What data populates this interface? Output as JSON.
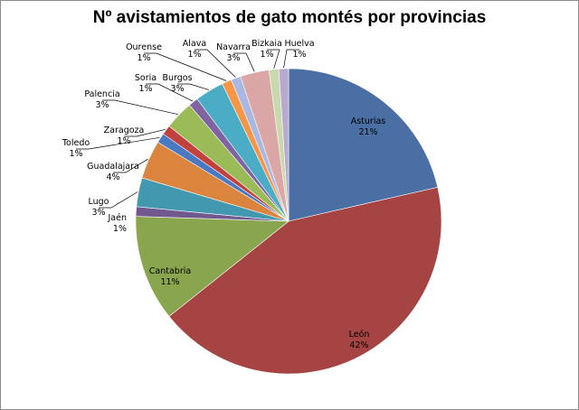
{
  "chart_data": {
    "type": "pie",
    "title": "Nº avistamientos de gato montés por provincias",
    "slices": [
      {
        "name": "Asturias",
        "value": 21,
        "label": "21%",
        "color": "#4a6fa5"
      },
      {
        "name": "León",
        "value": 42,
        "label": "42%",
        "color": "#a54442"
      },
      {
        "name": "Cantabria",
        "value": 11,
        "label": "11%",
        "color": "#89a54e"
      },
      {
        "name": "Jaén",
        "value": 1,
        "label": "1%",
        "color": "#71588f"
      },
      {
        "name": "Lugo",
        "value": 3,
        "label": "3%",
        "color": "#4198af"
      },
      {
        "name": "Guadalajara",
        "value": 4,
        "label": "4%",
        "color": "#db843d"
      },
      {
        "name": "Toledo",
        "value": 1,
        "label": "1%",
        "color": "#4a78c2"
      },
      {
        "name": "Zaragoza",
        "value": 1,
        "label": "1%",
        "color": "#c2413e"
      },
      {
        "name": "Palencia",
        "value": 3,
        "label": "3%",
        "color": "#9bbb59"
      },
      {
        "name": "Soria",
        "value": 1,
        "label": "1%",
        "color": "#8064a2"
      },
      {
        "name": "Burgos",
        "value": 3,
        "label": "3%",
        "color": "#4bacc6"
      },
      {
        "name": "Ourense",
        "value": 1,
        "label": "1%",
        "color": "#f79646"
      },
      {
        "name": "Alava",
        "value": 1,
        "label": "1%",
        "color": "#a7b9e3"
      },
      {
        "name": "Navarra",
        "value": 3,
        "label": "3%",
        "color": "#dba7a6"
      },
      {
        "name": "Bizkaia",
        "value": 1,
        "label": "1%",
        "color": "#c9d9ac"
      },
      {
        "name": "Huelva",
        "value": 1,
        "label": "1%",
        "color": "#b8a9cf"
      }
    ]
  }
}
